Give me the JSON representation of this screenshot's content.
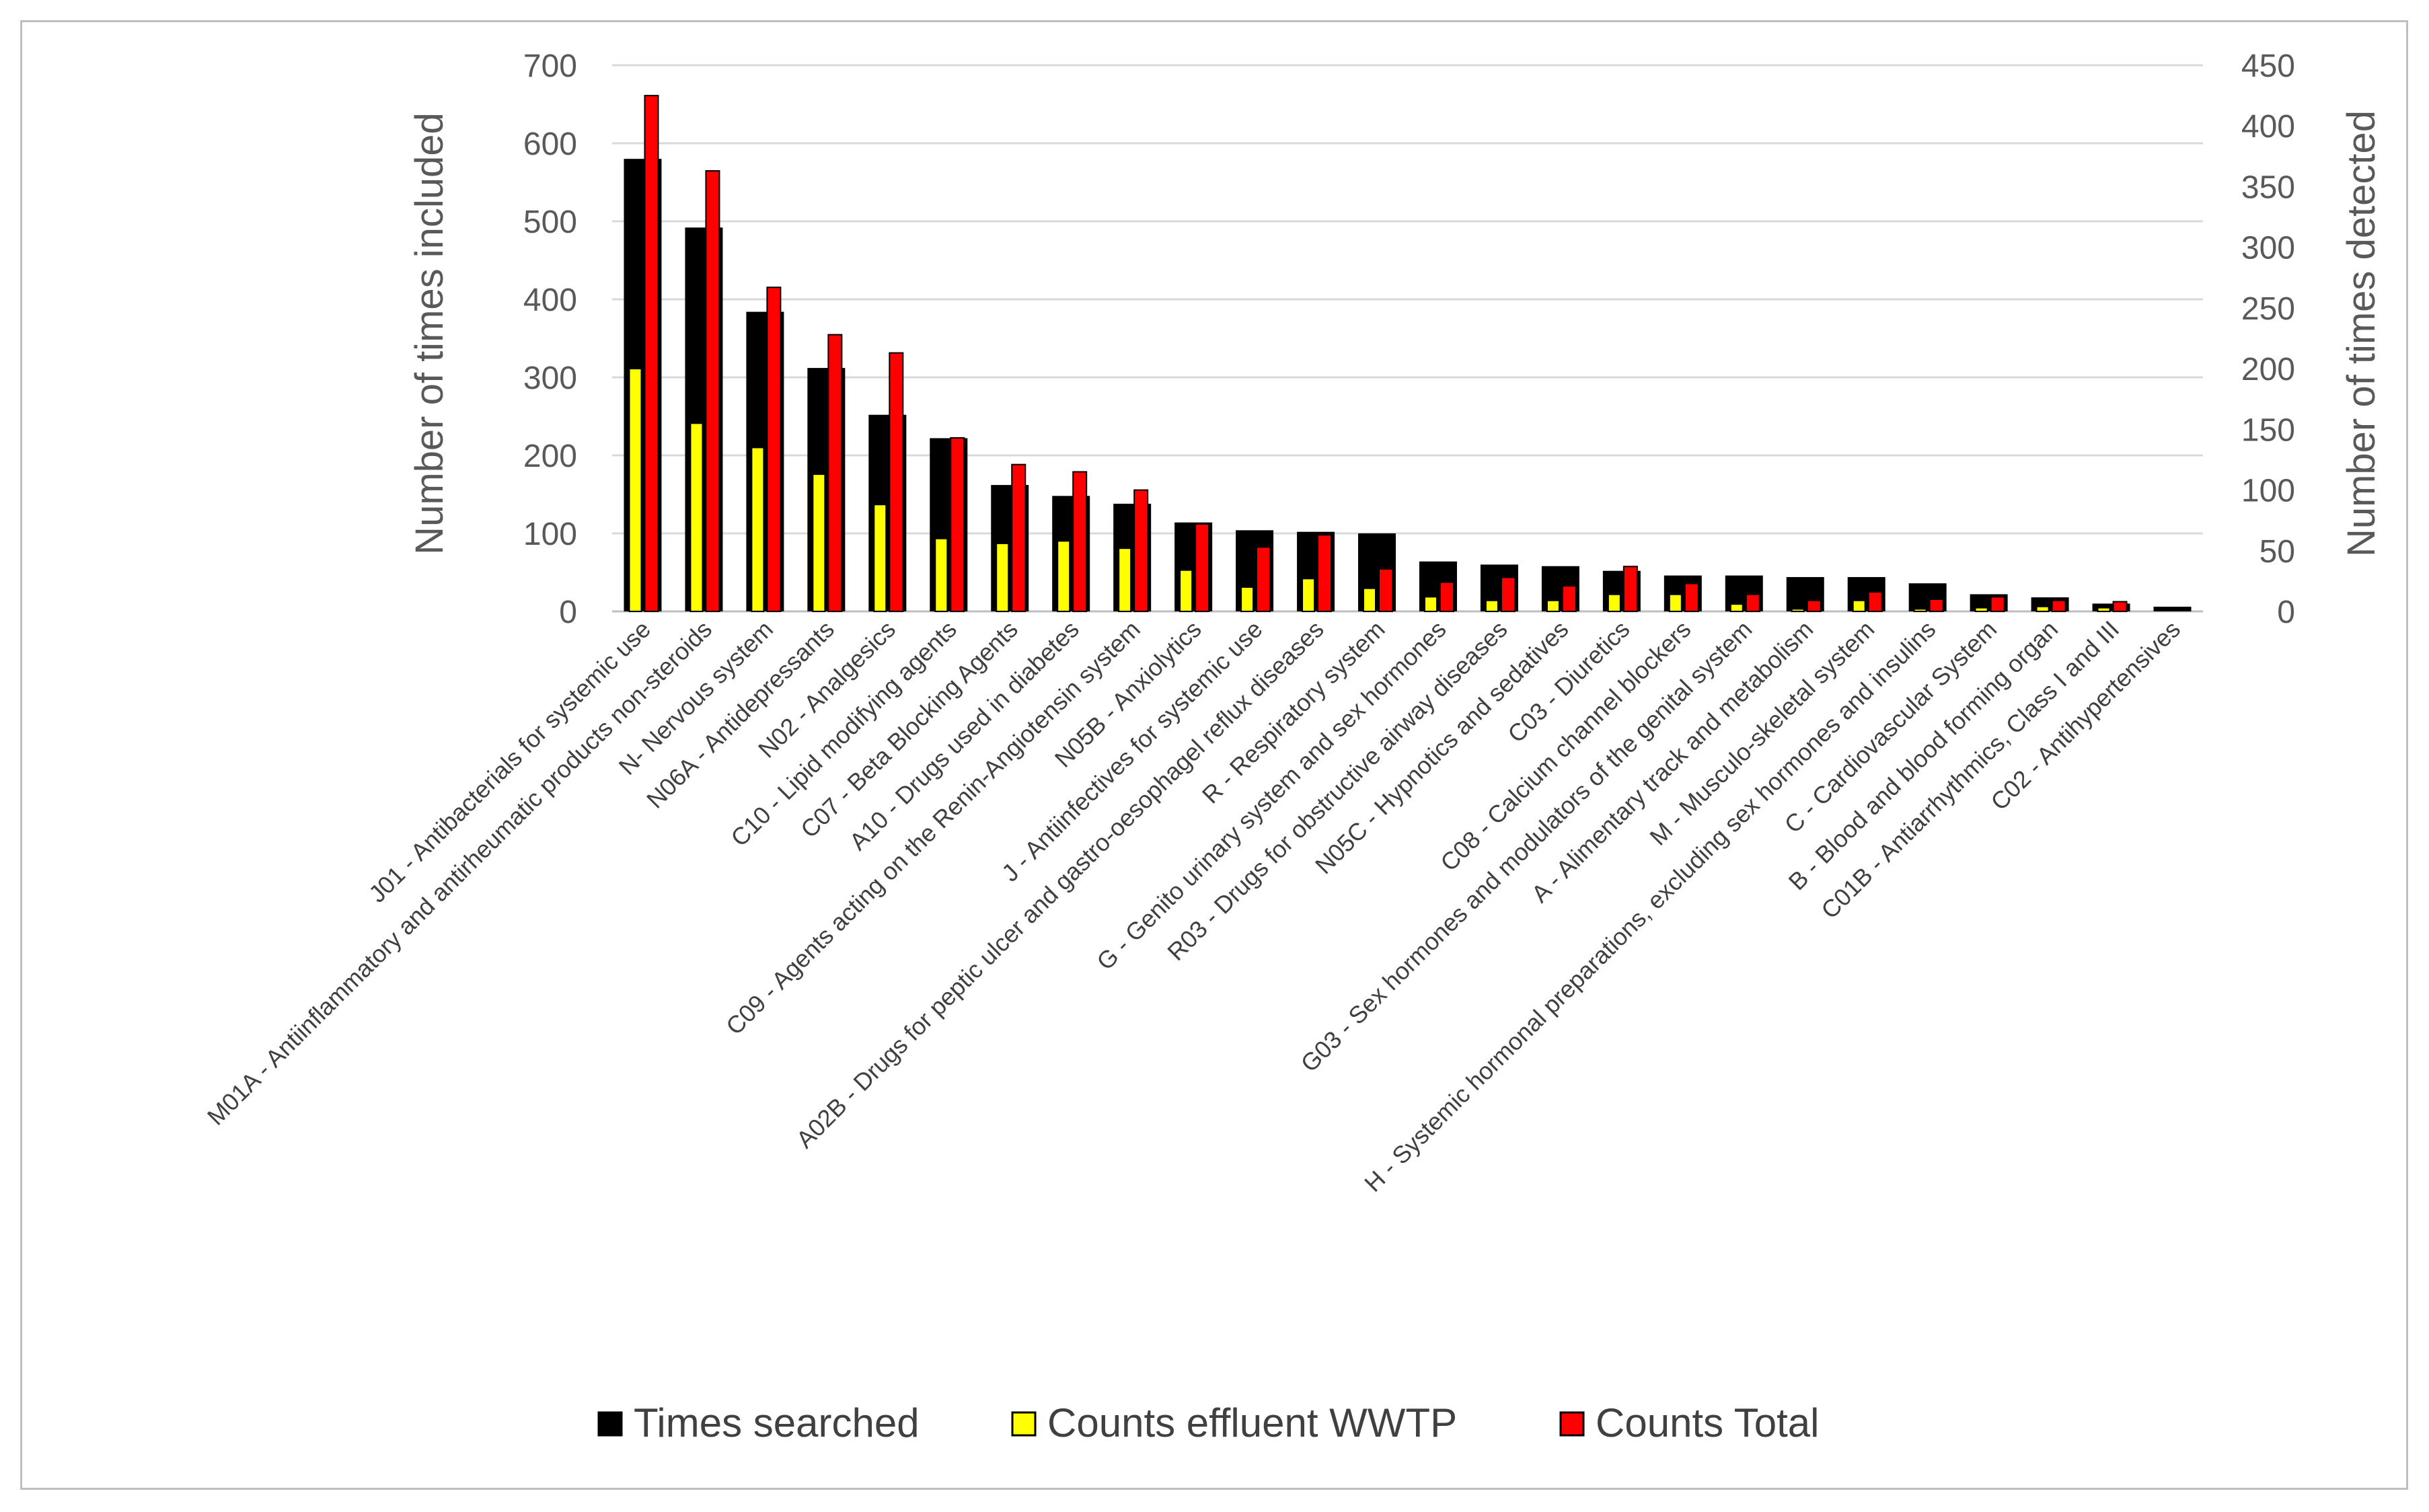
{
  "chart_data": {
    "type": "bar",
    "title": "",
    "ylabel": "Number of times included",
    "y2label": "Number of times detected",
    "ylim": [
      0,
      700
    ],
    "y2lim": [
      0,
      450
    ],
    "yticks": [
      "0",
      "100",
      "200",
      "300",
      "400",
      "500",
      "600",
      "700"
    ],
    "y2ticks": [
      "0",
      "50",
      "100",
      "150",
      "200",
      "250",
      "300",
      "350",
      "400",
      "450"
    ],
    "grid": true,
    "legend_position": "bottom",
    "categories": [
      "J01 - Antibacterials for systemic use",
      "M01A - Antiinflammatory and antirheumatic products non-steroids",
      "N- Nervous system",
      "N06A - Antidepressants",
      "N02 - Analgesics",
      "C10 - Lipid modifying agents",
      "C07 - Beta Blocking Agents",
      "A10 - Drugs used in diabetes",
      "C09 - Agents acting on the Renin-Angiotensin system",
      "N05B - Anxiolytics",
      "J - Antiinfectives for systemic use",
      "A02B - Drugs for peptic ulcer and gastro-oesophagel reflux diseases",
      "R - Respiratory system",
      "G - Genito urinary system and sex hormones",
      "R03 - Drugs for obstructive airway diseases",
      "N05C - Hypnotics and sedatives",
      "C03 - Diuretics",
      "C08 - Calcium channel blockers",
      "G03 - Sex hormones and modulators of the genital system",
      "A - Alimentary track and metabolism",
      "M - Musculo-skeletal system",
      "H - Systemic hormonal preparations, excluding sex hormones and insulins",
      "C - Cardiovascular System",
      "B - Blood and blood forming organ",
      "C01B - Antiarrhythmics, Class I and III",
      "C02 - Antihypertensives"
    ],
    "series": [
      {
        "name": "Times searched",
        "axis": "left",
        "color": "#000000",
        "values": [
          580,
          492,
          384,
          312,
          252,
          222,
          162,
          148,
          138,
          114,
          104,
          102,
          100,
          64,
          60,
          58,
          52,
          46,
          46,
          44,
          44,
          36,
          22,
          18,
          10,
          6
        ]
      },
      {
        "name": "Counts effluent WWTP",
        "axis": "right",
        "color": "#ffff00",
        "values": [
          200,
          155,
          135,
          113,
          88,
          60,
          56,
          58,
          52,
          34,
          20,
          27,
          19,
          12,
          9,
          9,
          14,
          14,
          6,
          2,
          9,
          2,
          3,
          4,
          3,
          0
        ]
      },
      {
        "name": "Counts Total",
        "axis": "right",
        "color": "#ff0000",
        "values": [
          425,
          363,
          267,
          228,
          213,
          143,
          121,
          115,
          100,
          72,
          53,
          63,
          35,
          24,
          28,
          21,
          37,
          23,
          14,
          9,
          16,
          10,
          12,
          9,
          8,
          0
        ]
      }
    ]
  }
}
